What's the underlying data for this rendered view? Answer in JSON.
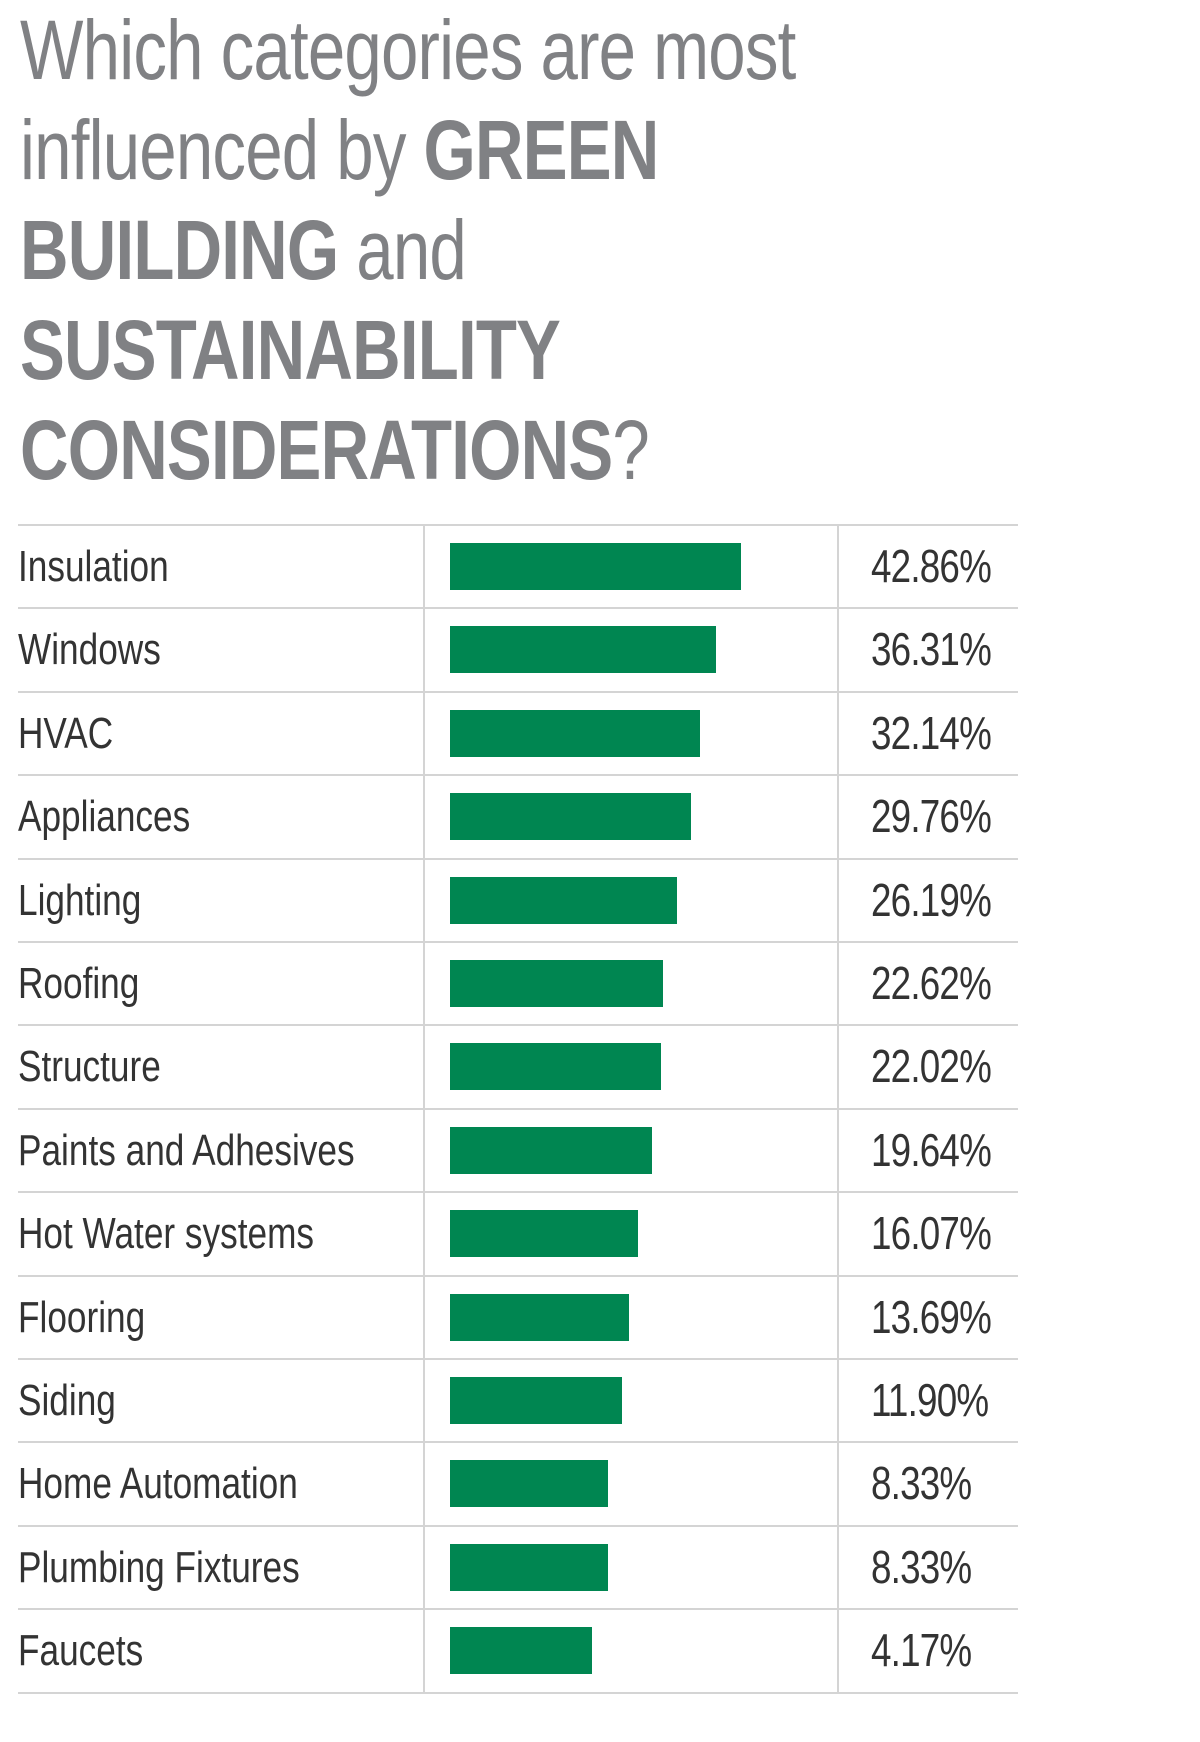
{
  "title": {
    "lines": [
      [
        {
          "text": "Which categories are most",
          "bold": false
        }
      ],
      [
        {
          "text": "influenced by ",
          "bold": false
        },
        {
          "text": "GREEN",
          "bold": true
        }
      ],
      [
        {
          "text": "BUILDING",
          "bold": true
        },
        {
          "text": " and",
          "bold": false
        }
      ],
      [
        {
          "text": "SUSTAINABILITY",
          "bold": true
        }
      ],
      [
        {
          "text": "CONSIDERATIONS",
          "bold": true
        },
        {
          "text": "?",
          "bold": false
        }
      ]
    ],
    "color": "#808184"
  },
  "chart_data": {
    "type": "bar",
    "orientation": "horizontal",
    "title": "Which categories are most influenced by GREEN BUILDING and SUSTAINABILITY CONSIDERATIONS?",
    "categories": [
      "Insulation",
      "Windows",
      "HVAC",
      "Appliances",
      "Lighting",
      "Roofing",
      "Structure",
      "Paints and Adhesives",
      "Hot Water systems",
      "Flooring",
      "Siding",
      "Home Automation",
      "Plumbing Fixtures",
      "Faucets"
    ],
    "values": [
      42.86,
      36.31,
      32.14,
      29.76,
      26.19,
      22.62,
      22.02,
      19.64,
      16.07,
      13.69,
      11.9,
      8.33,
      8.33,
      4.17
    ],
    "value_labels": [
      "42.86%",
      "36.31%",
      "32.14%",
      "29.76%",
      "26.19%",
      "22.62%",
      "22.02%",
      "19.64%",
      "16.07%",
      "13.69%",
      "11.90%",
      "8.33%",
      "8.33%",
      "4.17%"
    ],
    "unit": "%",
    "bar_color": "#008651",
    "grid": true
  }
}
